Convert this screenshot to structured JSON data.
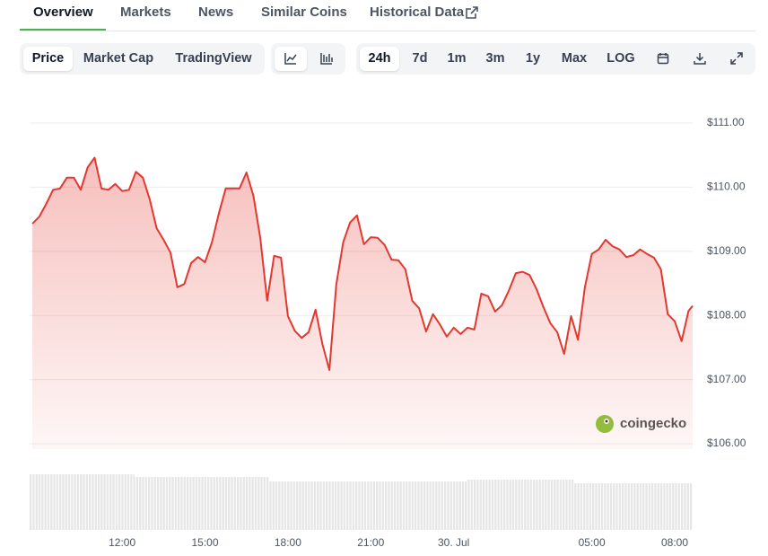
{
  "tabs": [
    "Overview",
    "Markets",
    "News",
    "Similar Coins",
    "Historical Data"
  ],
  "chart_tabs": [
    "Price",
    "Market Cap",
    "TradingView"
  ],
  "ranges": [
    "24h",
    "7d",
    "1m",
    "3m",
    "1y",
    "Max",
    "LOG"
  ],
  "watermark": "coingecko",
  "chart_data": {
    "type": "line",
    "color": "#e3382f",
    "grid": true,
    "x": [
      8.75,
      9,
      9.25,
      9.5,
      9.75,
      10,
      10.25,
      10.5,
      10.75,
      11,
      11.25,
      11.5,
      11.75,
      12,
      12.25,
      12.5,
      12.75,
      13,
      13.25,
      13.5,
      13.75,
      14,
      14.25,
      14.5,
      14.75,
      15,
      15.25,
      15.5,
      15.75,
      16,
      16.25,
      16.5,
      16.75,
      17,
      17.25,
      17.5,
      17.75,
      18,
      18.25,
      18.5,
      18.75,
      19,
      19.25,
      19.5,
      19.75,
      20,
      20.25,
      20.5,
      20.75,
      21,
      21.25,
      21.5,
      21.75,
      22,
      22.25,
      22.5,
      22.75,
      23,
      23.25,
      23.5,
      23.75,
      24,
      24.25,
      24.5,
      24.75,
      25,
      25.25,
      25.5,
      25.75,
      26,
      26.25,
      26.5,
      26.75,
      27,
      27.25,
      27.5,
      27.75,
      28,
      28.25,
      28.5,
      28.75,
      29,
      29.25,
      29.5,
      29.75,
      30,
      30.25,
      30.5,
      30.75,
      31,
      31.25,
      31.5,
      31.75,
      32,
      32.25,
      32.5,
      32.65
    ],
    "values": [
      109.43,
      109.54,
      109.74,
      109.96,
      109.98,
      110.15,
      110.15,
      109.96,
      110.31,
      110.46,
      109.98,
      109.96,
      110.05,
      109.94,
      109.96,
      110.24,
      110.15,
      109.81,
      109.36,
      109.18,
      108.98,
      108.44,
      108.49,
      108.82,
      108.91,
      108.83,
      109.14,
      109.59,
      109.98,
      109.98,
      109.98,
      110.23,
      109.87,
      109.21,
      108.23,
      108.93,
      108.9,
      107.99,
      107.76,
      107.65,
      107.74,
      108.09,
      107.55,
      107.15,
      108.48,
      109.14,
      109.45,
      109.56,
      109.11,
      109.22,
      109.21,
      109.1,
      108.87,
      108.86,
      108.72,
      108.23,
      108.11,
      107.75,
      108.02,
      107.86,
      107.67,
      107.81,
      107.71,
      107.81,
      107.78,
      108.34,
      108.3,
      108.06,
      108.16,
      108.39,
      108.66,
      108.68,
      108.63,
      108.41,
      108.13,
      107.88,
      107.74,
      107.4,
      107.99,
      107.62,
      108.44,
      108.96,
      109.03,
      109.18,
      109.08,
      109.03,
      108.91,
      108.94,
      109.03,
      108.96,
      108.9,
      108.72,
      108.02,
      107.91,
      107.6,
      108.07,
      108.15
    ],
    "xlim": [
      8.65,
      32.65
    ],
    "xticks": [
      {
        "value": 12,
        "label": "12:00"
      },
      {
        "value": 15,
        "label": "15:00"
      },
      {
        "value": 18,
        "label": "18:00"
      },
      {
        "value": 21,
        "label": "21:00"
      },
      {
        "value": 24,
        "label": "30. Jul"
      },
      {
        "value": 29,
        "label": "05:00"
      },
      {
        "value": 32,
        "label": "08:00"
      }
    ],
    "ylim": [
      106,
      111
    ],
    "yticks": [
      {
        "value": 106,
        "label": "$106.00"
      },
      {
        "value": 107,
        "label": "$107.00"
      },
      {
        "value": 108,
        "label": "$108.00"
      },
      {
        "value": 109,
        "label": "$109.00"
      },
      {
        "value": 110,
        "label": "$110.00"
      },
      {
        "value": 111,
        "label": "$111.00"
      }
    ]
  }
}
